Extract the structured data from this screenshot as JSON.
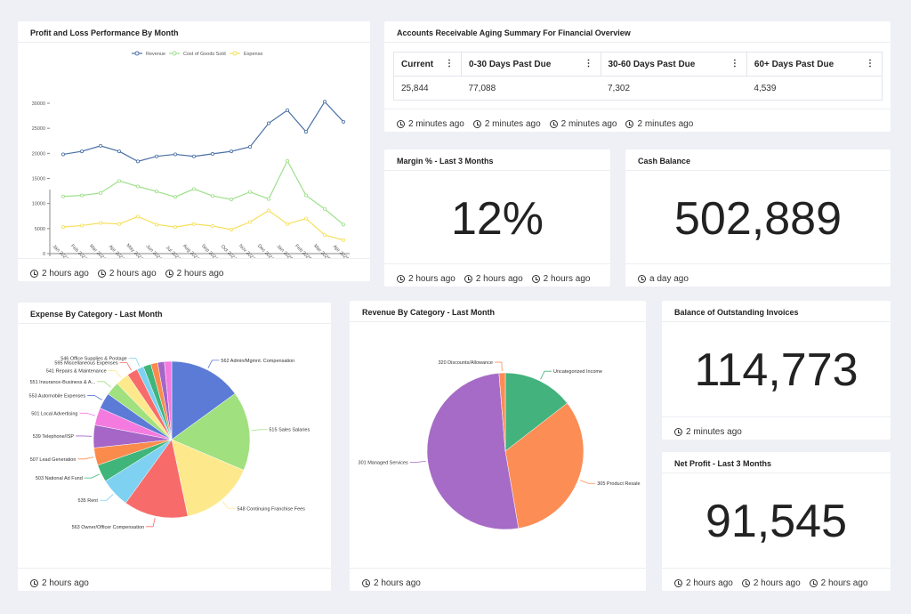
{
  "cards": {
    "pnl": {
      "title": "Profit and Loss Performance By Month",
      "footer": [
        "2 hours ago",
        "2 hours ago",
        "2 hours ago"
      ]
    },
    "ar": {
      "title": "Accounts Receivable Aging Summary For Financial Overview",
      "columns": [
        "Current",
        "0-30 Days Past Due",
        "30-60 Days Past Due",
        "60+ Days Past Due"
      ],
      "row": [
        "25,844",
        "77,088",
        "7,302",
        "4,539"
      ],
      "footer": [
        "2 minutes ago",
        "2 minutes ago",
        "2 minutes ago",
        "2 minutes ago"
      ]
    },
    "margin": {
      "title": "Margin % - Last 3 Months",
      "value": "12%",
      "footer": [
        "2 hours ago",
        "2 hours ago",
        "2 hours ago"
      ]
    },
    "cash": {
      "title": "Cash Balance",
      "value": "502,889",
      "footer": [
        "a day ago"
      ]
    },
    "expense": {
      "title": "Expense By Category - Last Month",
      "footer": [
        "2 hours ago"
      ]
    },
    "revenue": {
      "title": "Revenue By Category - Last Month",
      "footer": [
        "2 hours ago"
      ]
    },
    "balance": {
      "title": "Balance of Outstanding Invoices",
      "value": "114,773",
      "footer": [
        "2 minutes ago"
      ]
    },
    "netprofit": {
      "title": "Net Profit - Last 3 Months",
      "value": "91,545",
      "footer": [
        "2 hours ago",
        "2 hours ago",
        "2 hours ago"
      ]
    }
  },
  "chart_data": [
    {
      "type": "line",
      "ylim": [
        0,
        30000
      ],
      "yticks": [
        0,
        5000,
        10000,
        15000,
        20000,
        25000,
        30000
      ],
      "legend": "top",
      "grid": false,
      "categories": [
        "Jan 2024",
        "Feb 2024",
        "Mar 2024",
        "Apr 2024",
        "May 2024",
        "Jun 2024",
        "Jul 2024",
        "Aug 2024",
        "Sep 2024",
        "Oct 2024",
        "Nov 2024",
        "Dec 2024",
        "Jan 2025",
        "Feb 2025",
        "Mar 2025",
        "Apr 2025"
      ],
      "series": [
        {
          "name": "Revenue",
          "color": "#4a6fa5",
          "values": [
            19800,
            20400,
            21500,
            20400,
            18400,
            19400,
            19800,
            19400,
            19900,
            20400,
            21300,
            26000,
            28600,
            24300,
            30300,
            26300
          ]
        },
        {
          "name": "Cost of Goods Sold",
          "color": "#9ee08a",
          "values": [
            11400,
            11600,
            12100,
            14500,
            13400,
            12400,
            11300,
            12900,
            11500,
            10800,
            12300,
            10900,
            18500,
            11600,
            8900,
            5800
          ]
        },
        {
          "name": "Expense",
          "color": "#f5e05a",
          "values": [
            5300,
            5600,
            6100,
            5900,
            7400,
            5800,
            5300,
            5900,
            5500,
            4800,
            6300,
            8600,
            5900,
            7000,
            3700,
            2700
          ]
        }
      ]
    },
    {
      "type": "pie",
      "slices": [
        {
          "label": "562 Admin/Mgmnt. Compensation",
          "value": 15.0,
          "color": "#5b7bd6"
        },
        {
          "label": "515 Sales Salaries",
          "value": 16.4,
          "color": "#a0e07e"
        },
        {
          "label": "548 Continuing Franchise Fees",
          "value": 15.3,
          "color": "#fde98c"
        },
        {
          "label": "563 Owner/Officer Compensation",
          "value": 13.3,
          "color": "#f86b6b"
        },
        {
          "label": "535 Rent",
          "value": 6.1,
          "color": "#7fd1f1"
        },
        {
          "label": "503 National Ad Fund",
          "value": 3.6,
          "color": "#3fb57a"
        },
        {
          "label": "507 Lead Generation",
          "value": 3.6,
          "color": "#fb8b4c"
        },
        {
          "label": "539 Telephone/ISP",
          "value": 4.7,
          "color": "#a566c7"
        },
        {
          "label": "501 Local Advertising",
          "value": 3.6,
          "color": "#f47ae0"
        },
        {
          "label": "553 Automobile Expenses",
          "value": 3.3,
          "color": "#5b7bd6"
        },
        {
          "label": "551 Insurance-Business & A...",
          "value": 2.8,
          "color": "#a0e07e"
        },
        {
          "label": "541 Repairs & Maintenance",
          "value": 2.8,
          "color": "#fde98c"
        },
        {
          "label": "595 Miscellaneous Expenses",
          "value": 2.2,
          "color": "#f86b6b"
        },
        {
          "label": "546 Office Supplies & Postage",
          "value": 1.4,
          "color": "#7fd1f1"
        },
        {
          "label": "",
          "value": 1.6,
          "color": "#3fb57a"
        },
        {
          "label": "",
          "value": 1.4,
          "color": "#fb8b4c"
        },
        {
          "label": "",
          "value": 1.4,
          "color": "#a566c7"
        },
        {
          "label": "",
          "value": 1.5,
          "color": "#f47ae0"
        }
      ]
    },
    {
      "type": "pie",
      "slices": [
        {
          "label": "Uncategorized Income",
          "value": 14.5,
          "color": "#43b27c"
        },
        {
          "label": "305 Product Resale",
          "value": 32.8,
          "color": "#fb8d55"
        },
        {
          "label": "301 Managed Services",
          "value": 51.4,
          "color": "#a66bc6"
        },
        {
          "label": "320 Discounts/Allowance",
          "value": 1.3,
          "color": "#fb8d55"
        }
      ]
    }
  ]
}
